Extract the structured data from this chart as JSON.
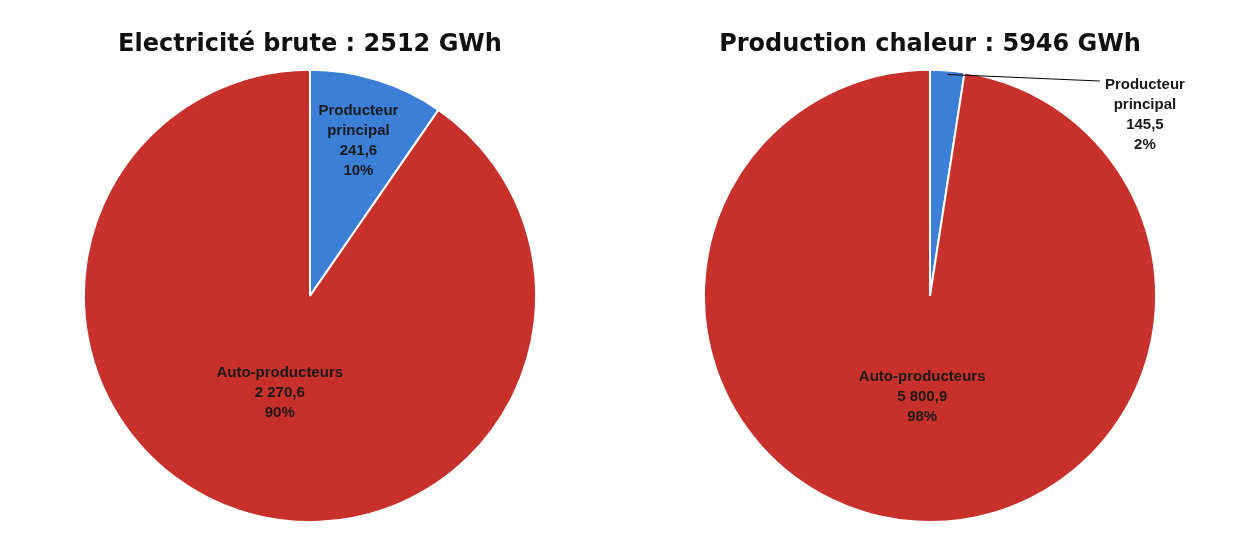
{
  "chart_data": [
    {
      "type": "pie",
      "title": "Electricité brute : 2512 GWh",
      "categories": [
        "Producteur principal",
        "Auto-producteurs"
      ],
      "values": [
        241.6,
        2270.6
      ],
      "colors": [
        "#3b7fd6",
        "#c8302c"
      ],
      "value_labels": [
        "241,6\n10%",
        "2 270,6\n90%"
      ],
      "legend": false
    },
    {
      "type": "pie",
      "title": "Production chaleur : 5946 GWh",
      "categories": [
        "Producteur principal",
        "Auto-producteurs"
      ],
      "values": [
        145.5,
        5800.9
      ],
      "colors": [
        "#3b7fd6",
        "#c8302c"
      ],
      "value_labels": [
        "145,5\n2%",
        "5 800,9\n98%"
      ],
      "legend": false
    }
  ]
}
